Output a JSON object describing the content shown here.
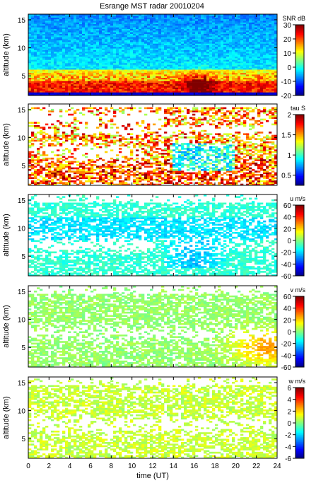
{
  "title": "Esrange MST radar 20010204",
  "chart_data": [
    {
      "type": "heatmap",
      "title": "Esrange MST radar 20010204",
      "quantity": "SNR dB",
      "ylabel": "altitude (km)",
      "yticks": [
        5,
        10,
        15
      ],
      "xlim": [
        0,
        24
      ],
      "ylim": [
        1.5,
        16
      ],
      "colorbar": {
        "label": "SNR dB",
        "range": [
          -20,
          30
        ],
        "ticks": [
          -20,
          -10,
          0,
          10,
          20,
          30
        ]
      },
      "colormap": "jet",
      "pattern": "snr"
    },
    {
      "type": "heatmap",
      "quantity": "tau S",
      "ylabel": "altitude (km)",
      "yticks": [
        5,
        10,
        15
      ],
      "xlim": [
        0,
        24
      ],
      "ylim": [
        1.5,
        16
      ],
      "colorbar": {
        "label": "tau S",
        "range": [
          0.25,
          2
        ],
        "ticks": [
          0.5,
          1,
          1.5,
          2
        ]
      },
      "colormap": "jet",
      "pattern": "tau"
    },
    {
      "type": "heatmap",
      "quantity": "u m/s",
      "ylabel": "altitude (km)",
      "yticks": [
        5,
        10,
        15
      ],
      "xlim": [
        0,
        24
      ],
      "ylim": [
        1.5,
        16
      ],
      "colorbar": {
        "label": "u m/s",
        "range": [
          -60,
          60
        ],
        "ticks": [
          -60,
          -40,
          -20,
          0,
          20,
          40,
          60
        ]
      },
      "colormap": "jet",
      "pattern": "u"
    },
    {
      "type": "heatmap",
      "quantity": "v m/s",
      "ylabel": "altitude (km)",
      "yticks": [
        5,
        10,
        15
      ],
      "xlim": [
        0,
        24
      ],
      "ylim": [
        1.5,
        16
      ],
      "colorbar": {
        "label": "v m/s",
        "range": [
          -60,
          60
        ],
        "ticks": [
          -60,
          -40,
          -20,
          0,
          20,
          40,
          60
        ]
      },
      "colormap": "jet",
      "pattern": "v"
    },
    {
      "type": "heatmap",
      "quantity": "w m/s",
      "ylabel": "altitude (km)",
      "yticks": [
        5,
        10,
        15
      ],
      "xlim": [
        0,
        24
      ],
      "ylim": [
        1.5,
        16
      ],
      "xlabel": "time (UT)",
      "xticks": [
        0,
        2,
        4,
        6,
        8,
        10,
        12,
        14,
        16,
        18,
        20,
        22,
        24
      ],
      "colorbar": {
        "label": "w m/s",
        "range": [
          -6,
          6
        ],
        "ticks": [
          -6,
          -4,
          -2,
          0,
          2,
          4,
          6
        ]
      },
      "colormap": "jet",
      "pattern": "w"
    }
  ]
}
